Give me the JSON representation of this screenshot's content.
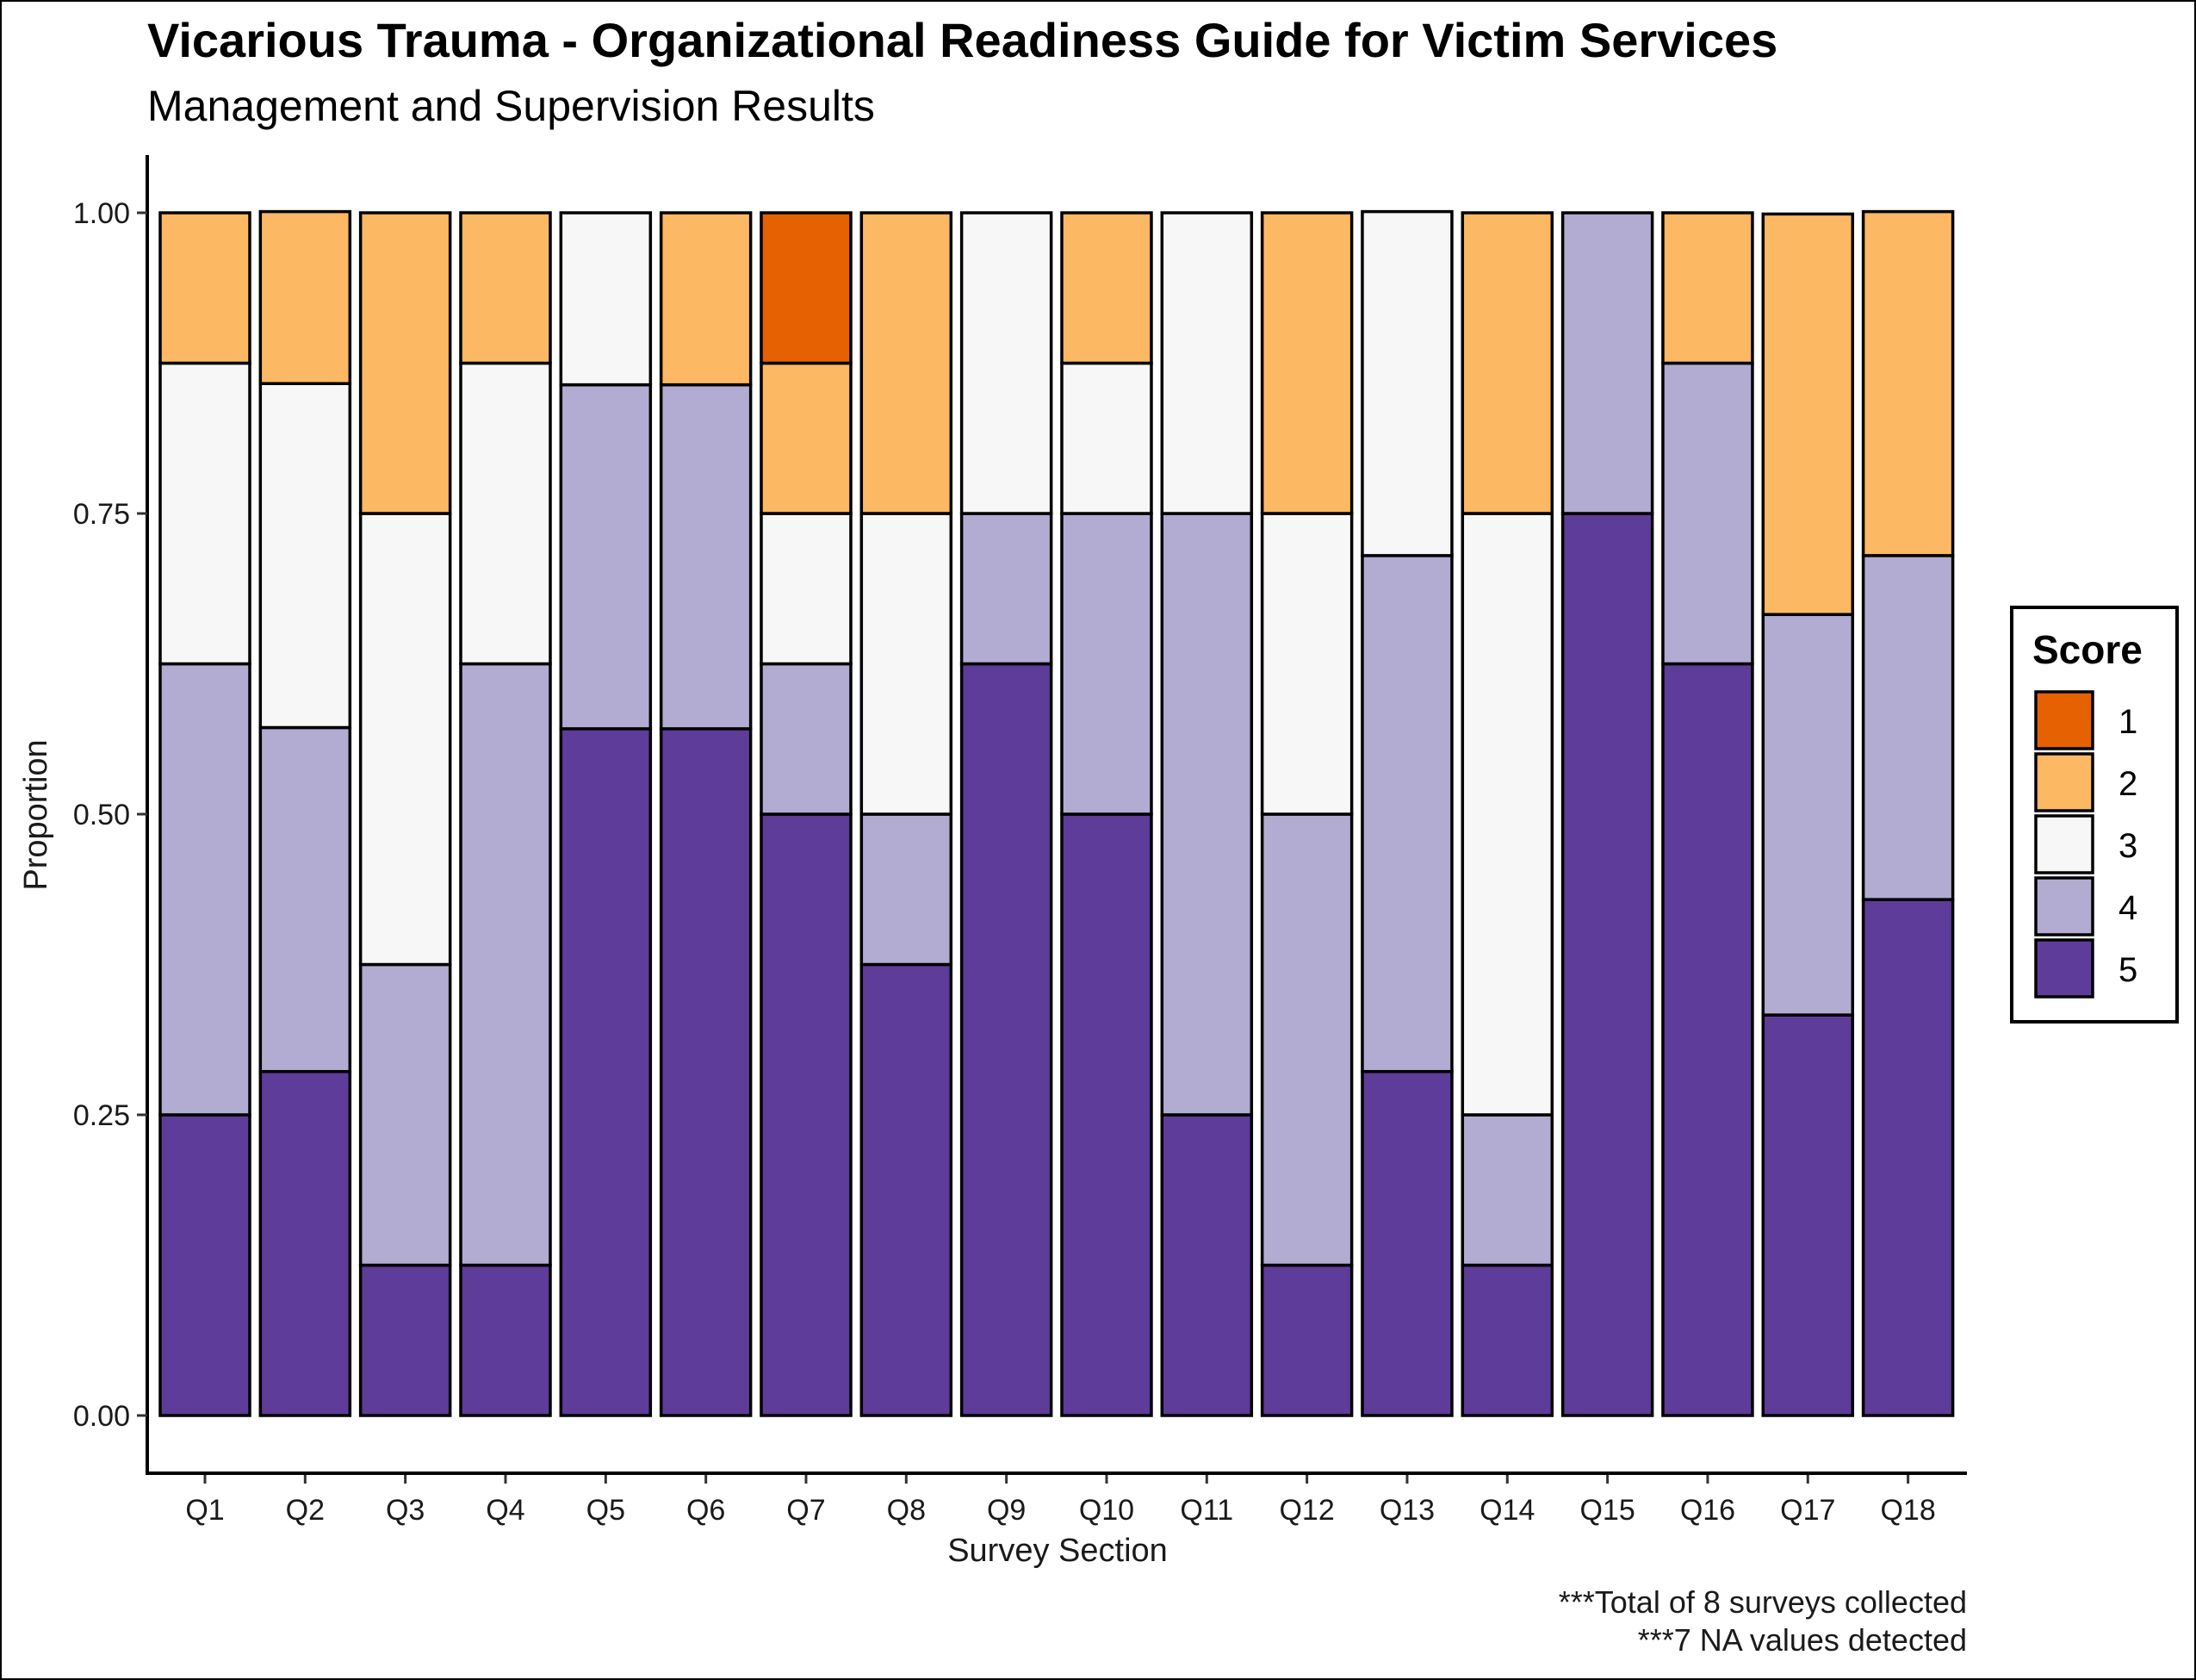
{
  "chart_data": {
    "type": "bar",
    "stacked": true,
    "title": "Vicarious Trauma - Organizational Readiness Guide for Victim Services",
    "subtitle": "Management and Supervision Results",
    "xlabel": "Survey Section",
    "ylabel": "Proportion",
    "ylim": [
      0,
      1
    ],
    "yticks": [
      "0.00",
      "0.25",
      "0.50",
      "0.75",
      "1.00"
    ],
    "categories": [
      "Q1",
      "Q2",
      "Q3",
      "Q4",
      "Q5",
      "Q6",
      "Q7",
      "Q8",
      "Q9",
      "Q10",
      "Q11",
      "Q12",
      "Q13",
      "Q14",
      "Q15",
      "Q16",
      "Q17",
      "Q18"
    ],
    "legend_title": "Score",
    "legend_position": "right",
    "grid": false,
    "series": [
      {
        "name": "1",
        "color": "#e66101",
        "values": [
          0,
          0,
          0,
          0,
          0,
          0,
          0.125,
          0,
          0,
          0,
          0,
          0,
          0,
          0,
          0,
          0,
          0,
          0
        ]
      },
      {
        "name": "2",
        "color": "#fdb863",
        "values": [
          0.125,
          0.143,
          0.25,
          0.125,
          0,
          0.143,
          0.125,
          0.25,
          0,
          0.125,
          0,
          0.25,
          0,
          0.25,
          0,
          0.125,
          0.333,
          0.286
        ]
      },
      {
        "name": "3",
        "color": "#f7f7f7",
        "values": [
          0.25,
          0.286,
          0.375,
          0.25,
          0.143,
          0,
          0.125,
          0.25,
          0.25,
          0.125,
          0.25,
          0.25,
          0.286,
          0.5,
          0,
          0,
          0,
          0
        ]
      },
      {
        "name": "4",
        "color": "#b2abd2",
        "values": [
          0.375,
          0.286,
          0.25,
          0.5,
          0.286,
          0.286,
          0.125,
          0.125,
          0.125,
          0.25,
          0.5,
          0.375,
          0.429,
          0.125,
          0.25,
          0.25,
          0.333,
          0.286
        ]
      },
      {
        "name": "5",
        "color": "#5e3c99",
        "values": [
          0.25,
          0.286,
          0.125,
          0.125,
          0.571,
          0.571,
          0.5,
          0.375,
          0.625,
          0.5,
          0.25,
          0.125,
          0.286,
          0.125,
          0.75,
          0.625,
          0.333,
          0.429
        ]
      }
    ],
    "captions": [
      "***Total of 8 surveys collected",
      "***7 NA values detected"
    ]
  }
}
